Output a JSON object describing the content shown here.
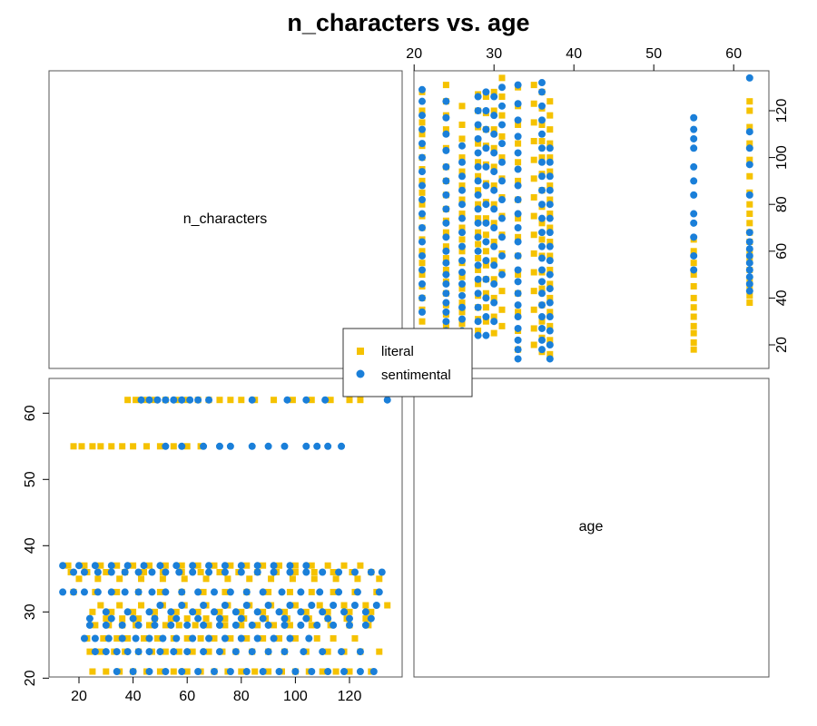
{
  "chart_data": {
    "type": "scatter",
    "title": "n_characters vs. age",
    "variables": [
      "n_characters",
      "age"
    ],
    "n_characters_ticks": [
      20,
      40,
      60,
      80,
      100,
      120
    ],
    "age_ticks": [
      20,
      30,
      40,
      50,
      60
    ],
    "n_characters_range": [
      12,
      135
    ],
    "age_range": [
      20,
      63
    ],
    "legend": {
      "placement": "center",
      "entries": [
        "literal",
        "sentimental"
      ]
    },
    "colors": {
      "literal": "#F5C200",
      "sentimental": "#1A7FD9"
    },
    "series": [
      {
        "name": "literal",
        "marker": "square",
        "groups": [
          {
            "age": 21,
            "n_characters": [
              25,
              30,
              35,
              40,
              45,
              50,
              55,
              60,
              65,
              70,
              75,
              80,
              85,
              90,
              95,
              100,
              105,
              110,
              115,
              120,
              128
            ]
          },
          {
            "age": 24,
            "n_characters": [
              24,
              28,
              33,
              37,
              42,
              47,
              52,
              57,
              62,
              68,
              73,
              78,
              84,
              90,
              96,
              104,
              112,
              118,
              124,
              131
            ]
          },
          {
            "age": 26,
            "n_characters": [
              23,
              29,
              34,
              38,
              44,
              49,
              55,
              60,
              65,
              70,
              76,
              82,
              88,
              94,
              100,
              108,
              114,
              122
            ]
          },
          {
            "age": 28,
            "n_characters": [
              26,
              31,
              36,
              41,
              46,
              52,
              57,
              63,
              68,
              74,
              80,
              86,
              92,
              98,
              106,
              113,
              120,
              127
            ]
          },
          {
            "age": 29,
            "n_characters": [
              30,
              36,
              42,
              48,
              54,
              60,
              67,
              74,
              81,
              89,
              97,
              105,
              112,
              119,
              126
            ]
          },
          {
            "age": 30,
            "n_characters": [
              25,
              32,
              40,
              48,
              56,
              64,
              72,
              80,
              88,
              96,
              104,
              112,
              120,
              128
            ]
          },
          {
            "age": 31,
            "n_characters": [
              28,
              35,
              43,
              51,
              59,
              67,
              75,
              83,
              91,
              100,
              109,
              118,
              126,
              134
            ]
          },
          {
            "age": 33,
            "n_characters": [
              18,
              26,
              34,
              42,
              50,
              58,
              66,
              74,
              82,
              90,
              98,
              106,
              114,
              122,
              130
            ]
          },
          {
            "age": 35,
            "n_characters": [
              20,
              27,
              35,
              43,
              51,
              59,
              67,
              75,
              83,
              91,
              99,
              107,
              115,
              123,
              131
            ]
          },
          {
            "age": 36,
            "n_characters": [
              17,
              23,
              30,
              37,
              44,
              51,
              58,
              65,
              72,
              79,
              86,
              93,
              100,
              107,
              114,
              121,
              128
            ]
          },
          {
            "age": 37,
            "n_characters": [
              16,
              22,
              28,
              34,
              40,
              46,
              52,
              58,
              64,
              70,
              76,
              82,
              88,
              94,
              100,
              106,
              112,
              118,
              124
            ]
          },
          {
            "age": 55,
            "n_characters": [
              18,
              21,
              25,
              28,
              32,
              36,
              40,
              45,
              50,
              55,
              60,
              65
            ]
          },
          {
            "age": 62,
            "n_characters": [
              38,
              41,
              45,
              48,
              52,
              56,
              60,
              64,
              68,
              72,
              76,
              80,
              85,
              92,
              99,
              106,
              113,
              120,
              124
            ]
          }
        ]
      },
      {
        "name": "sentimental",
        "marker": "circle",
        "groups": [
          {
            "age": 21,
            "n_characters": [
              34,
              40,
              46,
              52,
              58,
              64,
              70,
              76,
              82,
              88,
              94,
              100,
              106,
              112,
              118,
              124,
              129
            ]
          },
          {
            "age": 24,
            "n_characters": [
              26,
              30,
              34,
              38,
              42,
              46,
              50,
              55,
              60,
              66,
              72,
              78,
              84,
              90,
              96,
              103,
              110,
              117,
              124
            ]
          },
          {
            "age": 26,
            "n_characters": [
              22,
              26,
              31,
              36,
              41,
              46,
              51,
              56,
              62,
              68,
              74,
              80,
              86,
              92,
              98,
              105
            ]
          },
          {
            "age": 28,
            "n_characters": [
              24,
              30,
              36,
              42,
              48,
              54,
              60,
              66,
              72,
              78,
              84,
              90,
              96,
              102,
              108,
              114,
              120,
              126
            ]
          },
          {
            "age": 29,
            "n_characters": [
              24,
              32,
              40,
              48,
              56,
              64,
              72,
              80,
              88,
              96,
              104,
              112,
              120,
              128
            ]
          },
          {
            "age": 30,
            "n_characters": [
              30,
              38,
              46,
              54,
              62,
              70,
              78,
              86,
              94,
              102,
              110,
              118,
              126
            ]
          },
          {
            "age": 31,
            "n_characters": [
              50,
              58,
              66,
              74,
              82,
              90,
              98,
              106,
              114,
              122,
              130
            ]
          },
          {
            "age": 33,
            "n_characters": [
              14,
              18,
              22,
              27,
              32,
              37,
              42,
              47,
              52,
              58,
              64,
              70,
              76,
              82,
              88,
              95,
              102,
              109,
              116,
              123,
              131
            ]
          },
          {
            "age": 36,
            "n_characters": [
              18,
              22,
              27,
              32,
              37,
              42,
              47,
              52,
              57,
              62,
              68,
              74,
              80,
              86,
              92,
              98,
              104,
              110,
              116,
              122,
              128,
              132
            ]
          },
          {
            "age": 37,
            "n_characters": [
              14,
              20,
              26,
              32,
              38,
              44,
              50,
              56,
              62,
              68,
              74,
              80,
              86,
              92,
              98,
              104
            ]
          },
          {
            "age": 55,
            "n_characters": [
              52,
              58,
              66,
              72,
              76,
              84,
              90,
              96,
              104,
              108,
              112,
              117
            ]
          },
          {
            "age": 62,
            "n_characters": [
              43,
              46,
              49,
              52,
              55,
              58,
              61,
              64,
              68,
              84,
              97,
              104,
              111,
              134
            ]
          }
        ]
      }
    ]
  }
}
